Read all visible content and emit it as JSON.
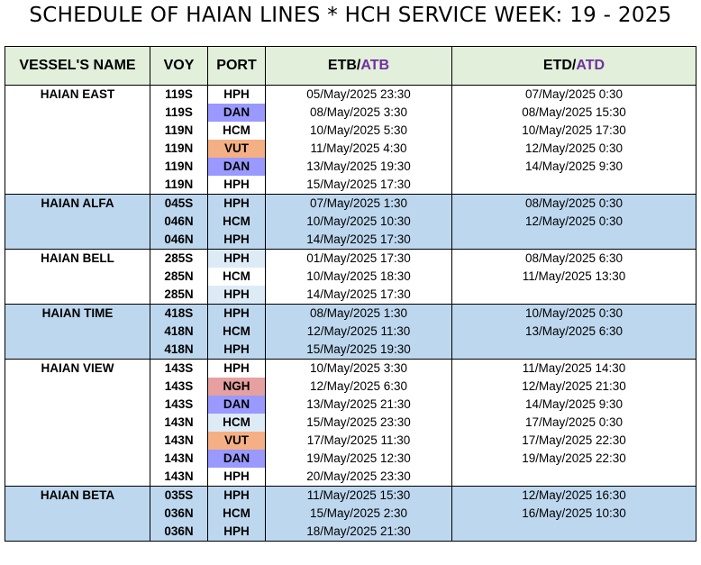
{
  "title": "SCHEDULE OF HAIAN LINES * HCH SERVICE WEEK: 19 - 2025",
  "headers": {
    "vessel": "VESSEL'S NAME",
    "voy": "VOY",
    "port": "PORT",
    "etb": "ETB/",
    "atb": "ATB",
    "etd": "ETD/",
    "atd": "ATD"
  },
  "colors": {
    "header_bg": "#E2EFDA",
    "band_blue": "#BDD7EE",
    "white": "#FFFFFF",
    "port_dan": "#9999FF",
    "port_vut": "#F4B084",
    "port_ngh": "#E6A0A0",
    "port_hph_light": "#DDEBF7",
    "accent_purple": "#7030A0"
  },
  "vessels": [
    {
      "name": "HAIAN EAST",
      "band": "white",
      "rows": [
        {
          "voy": "119S",
          "port": "HPH",
          "port_color": "",
          "etb": "05/May/2025 23:30",
          "etd": "07/May/2025 0:30"
        },
        {
          "voy": "119S",
          "port": "DAN",
          "port_color": "#9999FF",
          "etb": "08/May/2025 3:30",
          "etd": "08/May/2025 15:30"
        },
        {
          "voy": "119N",
          "port": "HCM",
          "port_color": "",
          "etb": "10/May/2025 5:30",
          "etd": "10/May/2025 17:30"
        },
        {
          "voy": "119N",
          "port": "VUT",
          "port_color": "#F4B084",
          "etb": "11/May/2025 4:30",
          "etd": "12/May/2025 0:30"
        },
        {
          "voy": "119N",
          "port": "DAN",
          "port_color": "#9999FF",
          "etb": "13/May/2025 19:30",
          "etd": "14/May/2025 9:30"
        },
        {
          "voy": "119N",
          "port": "HPH",
          "port_color": "",
          "etb": "15/May/2025 17:30",
          "etd": ""
        }
      ]
    },
    {
      "name": "HAIAN ALFA",
      "band": "blue",
      "rows": [
        {
          "voy": "045S",
          "port": "HPH",
          "port_color": "",
          "etb": "07/May/2025 1:30",
          "etd": "08/May/2025 0:30"
        },
        {
          "voy": "046N",
          "port": "HCM",
          "port_color": "",
          "etb": "10/May/2025 10:30",
          "etd": "12/May/2025 0:30"
        },
        {
          "voy": "046N",
          "port": "HPH",
          "port_color": "",
          "etb": "14/May/2025 17:30",
          "etd": ""
        }
      ]
    },
    {
      "name": "HAIAN BELL",
      "band": "white",
      "rows": [
        {
          "voy": "285S",
          "port": "HPH",
          "port_color": "#DDEBF7",
          "etb": "01/May/2025 17:30",
          "etd": "08/May/2025 6:30"
        },
        {
          "voy": "285N",
          "port": "HCM",
          "port_color": "",
          "etb": "10/May/2025 18:30",
          "etd": "11/May/2025 13:30"
        },
        {
          "voy": "285N",
          "port": "HPH",
          "port_color": "#DDEBF7",
          "etb": "14/May/2025 17:30",
          "etd": ""
        }
      ]
    },
    {
      "name": "HAIAN TIME",
      "band": "blue",
      "rows": [
        {
          "voy": "418S",
          "port": "HPH",
          "port_color": "",
          "etb": "08/May/2025 1:30",
          "etd": "10/May/2025 0:30"
        },
        {
          "voy": "418N",
          "port": "HCM",
          "port_color": "",
          "etb": "12/May/2025 11:30",
          "etd": "13/May/2025 6:30"
        },
        {
          "voy": "418N",
          "port": "HPH",
          "port_color": "",
          "etb": "15/May/2025 19:30",
          "etd": ""
        }
      ]
    },
    {
      "name": "HAIAN VIEW",
      "band": "white",
      "rows": [
        {
          "voy": "143S",
          "port": "HPH",
          "port_color": "",
          "etb": "10/May/2025 3:30",
          "etd": "11/May/2025 14:30"
        },
        {
          "voy": "143S",
          "port": "NGH",
          "port_color": "#E6A0A0",
          "etb": "12/May/2025 6:30",
          "etd": "12/May/2025 21:30"
        },
        {
          "voy": "143S",
          "port": "DAN",
          "port_color": "#9999FF",
          "etb": "13/May/2025 21:30",
          "etd": "14/May/2025 9:30"
        },
        {
          "voy": "143N",
          "port": "HCM",
          "port_color": "#DDEBF7",
          "etb": "15/May/2025 23:30",
          "etd": "17/May/2025 0:30"
        },
        {
          "voy": "143N",
          "port": "VUT",
          "port_color": "#F4B084",
          "etb": "17/May/2025 11:30",
          "etd": "17/May/2025 22:30"
        },
        {
          "voy": "143N",
          "port": "DAN",
          "port_color": "#9999FF",
          "etb": "19/May/2025 12:30",
          "etd": "19/May/2025 22:30"
        },
        {
          "voy": "143N",
          "port": "HPH",
          "port_color": "",
          "etb": "20/May/2025 23:30",
          "etd": ""
        }
      ]
    },
    {
      "name": "HAIAN BETA",
      "band": "blue",
      "rows": [
        {
          "voy": "035S",
          "port": "HPH",
          "port_color": "",
          "etb": "11/May/2025 15:30",
          "etd": "12/May/2025 16:30"
        },
        {
          "voy": "036N",
          "port": "HCM",
          "port_color": "",
          "etb": "15/May/2025 2:30",
          "etd": "16/May/2025 10:30"
        },
        {
          "voy": "036N",
          "port": "HPH",
          "port_color": "",
          "etb": "18/May/2025 21:30",
          "etd": ""
        }
      ]
    }
  ]
}
